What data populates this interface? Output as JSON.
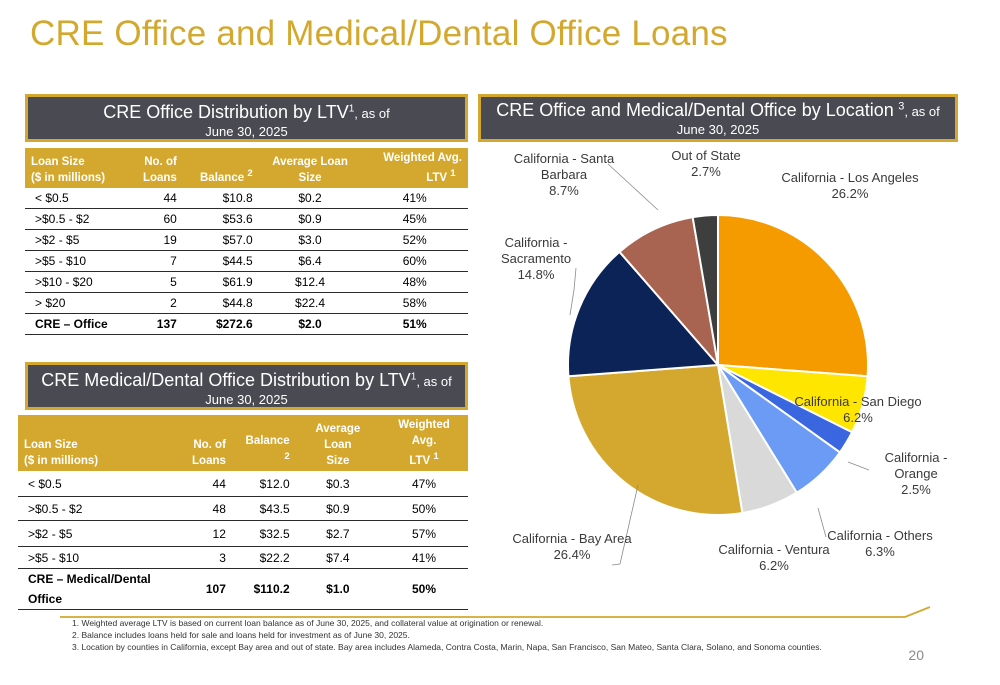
{
  "page": {
    "title": "CRE Office and Medical/Dental Office Loans",
    "page_number": "20"
  },
  "office_panel": {
    "title_main": "CRE Office Distribution by LTV",
    "title_sup": "1",
    "title_suffix": ", as of",
    "title_line2": "June 30, 2025",
    "headers": {
      "loan_size_1": "Loan Size",
      "loan_size_2": "($ in millions)",
      "num_loans_1": "No. of",
      "num_loans_2": "Loans",
      "balance": "Balance",
      "balance_sup": "2",
      "avg_size_1": "Average Loan",
      "avg_size_2": "Size",
      "ltv_1": "Weighted Avg.",
      "ltv_2": "LTV",
      "ltv_sup": "1"
    },
    "rows": [
      {
        "size": "< $0.5",
        "loans": "44",
        "balance": "$10.8",
        "avg": "$0.2",
        "ltv": "41%"
      },
      {
        "size": ">$0.5 - $2",
        "loans": "60",
        "balance": "$53.6",
        "avg": "$0.9",
        "ltv": "45%"
      },
      {
        "size": ">$2 - $5",
        "loans": "19",
        "balance": "$57.0",
        "avg": "$3.0",
        "ltv": "52%"
      },
      {
        "size": ">$5 - $10",
        "loans": "7",
        "balance": "$44.5",
        "avg": "$6.4",
        "ltv": "60%"
      },
      {
        "size": ">$10 - $20",
        "loans": "5",
        "balance": "$61.9",
        "avg": "$12.4",
        "ltv": "48%"
      },
      {
        "size": "> $20",
        "loans": "2",
        "balance": "$44.8",
        "avg": "$22.4",
        "ltv": "58%"
      }
    ],
    "total": {
      "size": "CRE – Office",
      "loans": "137",
      "balance": "$272.6",
      "avg": "$2.0",
      "ltv": "51%"
    }
  },
  "medical_panel": {
    "title_main": "CRE Medical/Dental Office Distribution by LTV",
    "title_sup": "1",
    "title_suffix": ", as of",
    "title_line2": "June 30, 2025",
    "headers": {
      "loan_size_1": "Loan Size",
      "loan_size_2": "($ in millions)",
      "num_loans_1": "No. of",
      "num_loans_2": "Loans",
      "balance": "Balance",
      "balance_sup": "2",
      "avg_size_1": "Average Loan",
      "avg_size_2": "Size",
      "ltv_1": "Weighted Avg.",
      "ltv_2": "LTV",
      "ltv_sup": "1"
    },
    "rows": [
      {
        "size": "< $0.5",
        "loans": "44",
        "balance": "$12.0",
        "avg": "$0.3",
        "ltv": "47%"
      },
      {
        "size": ">$0.5 - $2",
        "loans": "48",
        "balance": "$43.5",
        "avg": "$0.9",
        "ltv": "50%"
      },
      {
        "size": ">$2 - $5",
        "loans": "12",
        "balance": "$32.5",
        "avg": "$2.7",
        "ltv": "57%"
      },
      {
        "size": ">$5 - $10",
        "loans": "3",
        "balance": "$22.2",
        "avg": "$7.4",
        "ltv": "41%"
      }
    ],
    "total": {
      "size": "CRE – Medical/Dental Office",
      "loans": "107",
      "balance": "$110.2",
      "avg": "$1.0",
      "ltv": "50%"
    }
  },
  "location_panel": {
    "title_main": "CRE Office and Medical/Dental Office by Location",
    "title_sup": "3",
    "title_suffix": ", as of",
    "title_line2": "June 30, 2025"
  },
  "chart_data": {
    "type": "pie",
    "title": "",
    "start": "12 o'clock",
    "direction": "clockwise",
    "slices": [
      {
        "label": "California - Los Angeles",
        "value": 26.2,
        "value_label": "26.2%",
        "color": "#f59b00"
      },
      {
        "label": "California - San Diego",
        "value": 6.2,
        "value_label": "6.2%",
        "color": "#ffe600"
      },
      {
        "label": "California - Orange",
        "value": 2.5,
        "value_label": "2.5%",
        "color": "#3a66e0"
      },
      {
        "label": "California - Others",
        "value": 6.3,
        "value_label": "6.3%",
        "color": "#6b9bf4"
      },
      {
        "label": "California - Ventura",
        "value": 6.2,
        "value_label": "6.2%",
        "color": "#d9d9d9"
      },
      {
        "label": "California - Bay Area",
        "value": 26.4,
        "value_label": "26.4%",
        "color": "#d4a82e"
      },
      {
        "label": "California - Sacramento",
        "value": 14.8,
        "value_label": "14.8%",
        "color": "#0c2358"
      },
      {
        "label": "California - Santa Barbara",
        "value": 8.7,
        "value_label": "8.7%",
        "color": "#a86450"
      },
      {
        "label": "Out of State",
        "value": 2.7,
        "value_label": "2.7%",
        "color": "#3e3e3e"
      }
    ]
  },
  "footnotes": [
    "1. Weighted average LTV is based on current loan balance as of June 30, 2025, and collateral value at origination or renewal.",
    "2. Balance includes loans held for sale and loans held for investment as of June 30, 2025.",
    "3. Location by counties in California, except Bay area and out of state. Bay area includes Alameda, Contra Costa, Marin, Napa, San Francisco, San Mateo, Santa Clara, Solano, and Sonoma counties."
  ],
  "colors": {
    "accent_gold": "#d4a82e",
    "panel_header_bg": "#4a4a52"
  }
}
